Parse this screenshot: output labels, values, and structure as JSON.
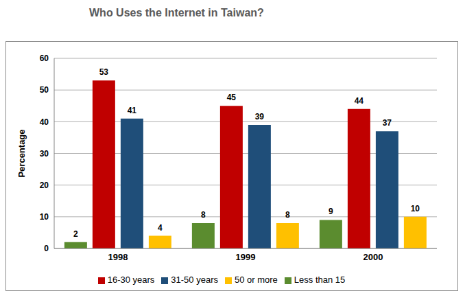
{
  "chart_data": {
    "type": "bar",
    "title": "Who Uses the Internet in Taiwan?",
    "y_label": "Percentage",
    "categories": [
      "1998",
      "1999",
      "2000"
    ],
    "series": [
      {
        "name": "Less than 15",
        "color": "#5b8c2f",
        "values": [
          2,
          8,
          9
        ]
      },
      {
        "name": "16-30 years",
        "color": "#c00000",
        "values": [
          53,
          45,
          44
        ]
      },
      {
        "name": "31-50 years",
        "color": "#1f4e79",
        "values": [
          41,
          39,
          37
        ]
      },
      {
        "name": "50 or more",
        "color": "#ffc000",
        "values": [
          4,
          8,
          10
        ]
      }
    ],
    "ylim": [
      0,
      60
    ],
    "yticks": [
      0,
      10,
      20,
      30,
      40,
      50,
      60
    ],
    "grid": true,
    "legend": "bottom",
    "data_labels": true
  }
}
